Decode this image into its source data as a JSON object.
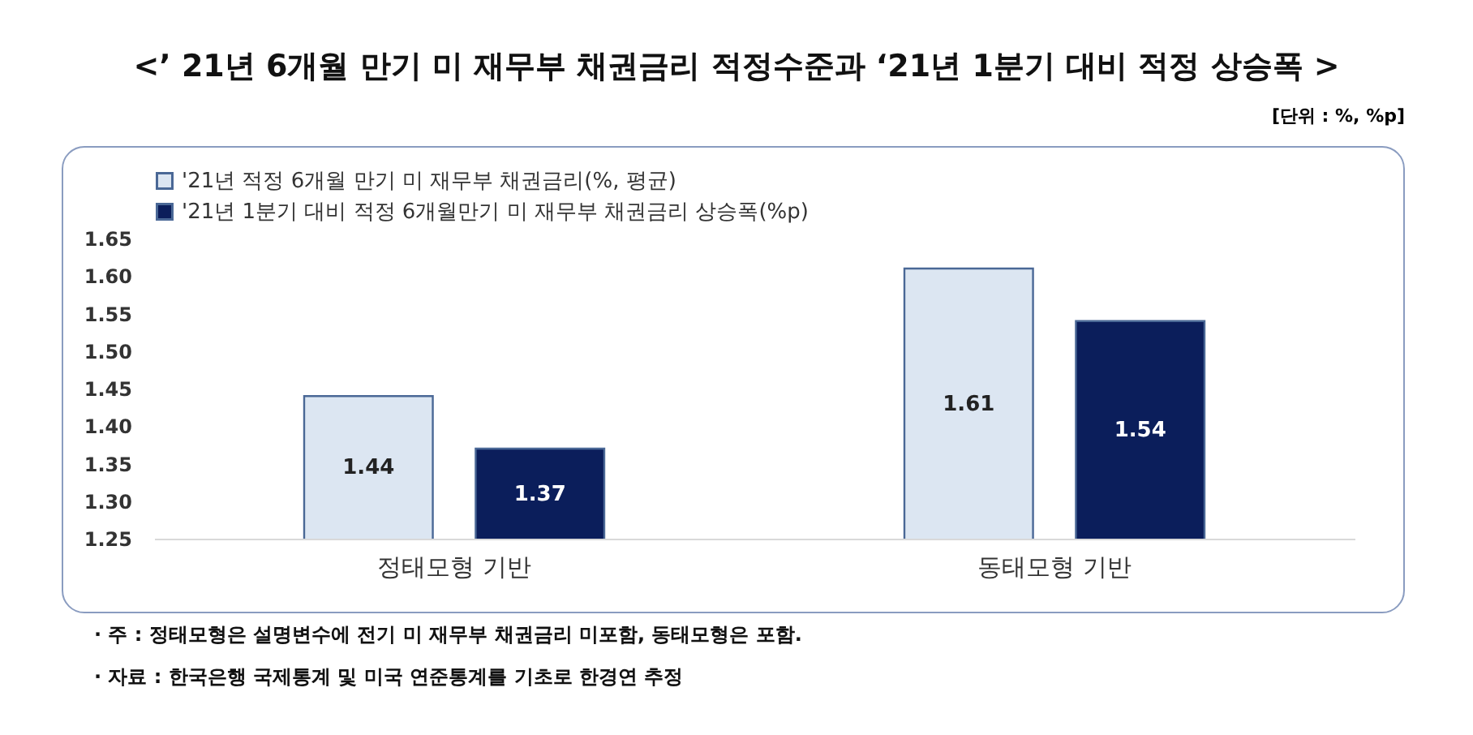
{
  "chart_data": {
    "type": "bar",
    "title": "<’ 21년 6개월 만기 미 재무부 채권금리 적정수준과 ‘21년 1분기 대비 적정 상승폭 >",
    "categories": [
      "정태모형 기반",
      "동태모형 기반"
    ],
    "series": [
      {
        "name": "'21년 적정 6개월 만기 미 재무부 채권금리(%, 평균)",
        "color": "#dce6f2",
        "values": [
          1.44,
          1.61
        ]
      },
      {
        "name": "'21년 1분기 대비 적정 6개월만기 미 재무부 채권금리 상승폭(%p)",
        "color": "#0b1e5b",
        "values": [
          1.37,
          1.54
        ]
      }
    ],
    "ylim": [
      1.25,
      1.65
    ],
    "yticks": [
      {
        "value": 1.25,
        "label": "1.25"
      },
      {
        "value": 1.3,
        "label": "1.30"
      },
      {
        "value": 1.35,
        "label": "1.35"
      },
      {
        "value": 1.4,
        "label": "1.40"
      },
      {
        "value": 1.45,
        "label": "1.45"
      },
      {
        "value": 1.5,
        "label": "1.50"
      },
      {
        "value": 1.55,
        "label": "1.55"
      },
      {
        "value": 1.6,
        "label": "1.60"
      },
      {
        "value": 1.65,
        "label": "1.65"
      }
    ],
    "data_labels": true,
    "legend": "top left",
    "grid": false,
    "annotations": [
      "[단위 : %, %p]",
      "· 주 : 정태모형은 설명변수에 전기 미 재무부 채권금리 미포함, 동태모형은 포함.",
      "· 자료 : 한국은행 국제통계 및 미국 연준통계를 기초로 한경연 추정"
    ]
  }
}
